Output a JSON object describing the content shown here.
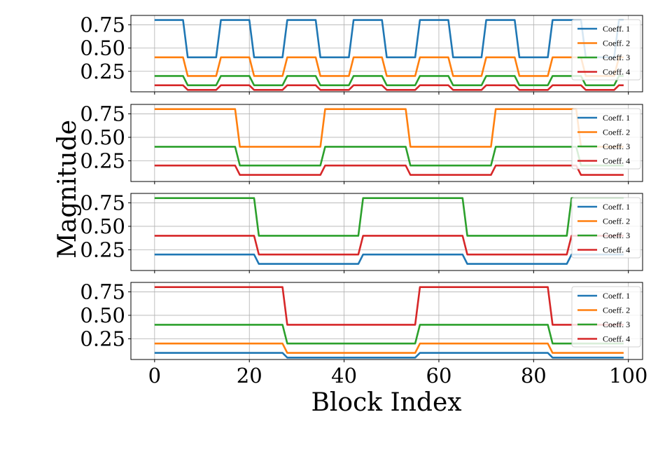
{
  "chart_data": {
    "type": "line",
    "xlabel": "Block Index",
    "ylabel": "Magnitude",
    "xlim": [
      -5,
      103
    ],
    "ylim": [
      0.03,
      0.85
    ],
    "xticks": [
      0,
      20,
      40,
      60,
      80,
      100
    ],
    "xtick_labels": [
      "0",
      "20",
      "40",
      "60",
      "80",
      "100"
    ],
    "yticks": [
      0.25,
      0.5,
      0.75
    ],
    "ytick_labels": [
      "0.25",
      "0.50",
      "0.75"
    ],
    "grid": true,
    "legend_position": "upper-right",
    "colors": {
      "Coeff. 1": "#1f77b4",
      "Coeff. 2": "#ff7f0e",
      "Coeff. 3": "#2ca02c",
      "Coeff. 4": "#d62728"
    },
    "panels": [
      {
        "period": 14,
        "high_len": 7,
        "legend": [
          "Coeff. 1",
          "Coeff. 2",
          "Coeff. 3",
          "Coeff. 4"
        ],
        "series": [
          {
            "name": "Coeff. 1",
            "high": 0.8,
            "low": 0.4
          },
          {
            "name": "Coeff. 2",
            "high": 0.4,
            "low": 0.2
          },
          {
            "name": "Coeff. 3",
            "high": 0.2,
            "low": 0.1
          },
          {
            "name": "Coeff. 4",
            "high": 0.1,
            "low": 0.05
          }
        ]
      },
      {
        "period": 36,
        "high_len": 18,
        "legend": [
          "Coeff. 1",
          "Coeff. 2",
          "Coeff. 3",
          "Coeff. 4"
        ],
        "series": [
          {
            "name": "Coeff. 2",
            "high": 0.8,
            "low": 0.4
          },
          {
            "name": "Coeff. 3",
            "high": 0.4,
            "low": 0.2
          },
          {
            "name": "Coeff. 4",
            "high": 0.2,
            "low": 0.1
          }
        ]
      },
      {
        "period": 44,
        "high_len": 22,
        "legend": [
          "Coeff. 1",
          "Coeff. 2",
          "Coeff. 3",
          "Coeff. 4"
        ],
        "series": [
          {
            "name": "Coeff. 1",
            "high": 0.2,
            "low": 0.1
          },
          {
            "name": "Coeff. 3",
            "high": 0.8,
            "low": 0.4
          },
          {
            "name": "Coeff. 4",
            "high": 0.4,
            "low": 0.2
          }
        ]
      },
      {
        "period": 56,
        "high_len": 28,
        "legend": [
          "Coeff. 1",
          "Coeff. 2",
          "Coeff. 3",
          "Coeff. 4"
        ],
        "series": [
          {
            "name": "Coeff. 1",
            "high": 0.1,
            "low": 0.05
          },
          {
            "name": "Coeff. 2",
            "high": 0.2,
            "low": 0.1
          },
          {
            "name": "Coeff. 3",
            "high": 0.4,
            "low": 0.2
          },
          {
            "name": "Coeff. 4",
            "high": 0.8,
            "low": 0.4
          }
        ]
      }
    ]
  }
}
